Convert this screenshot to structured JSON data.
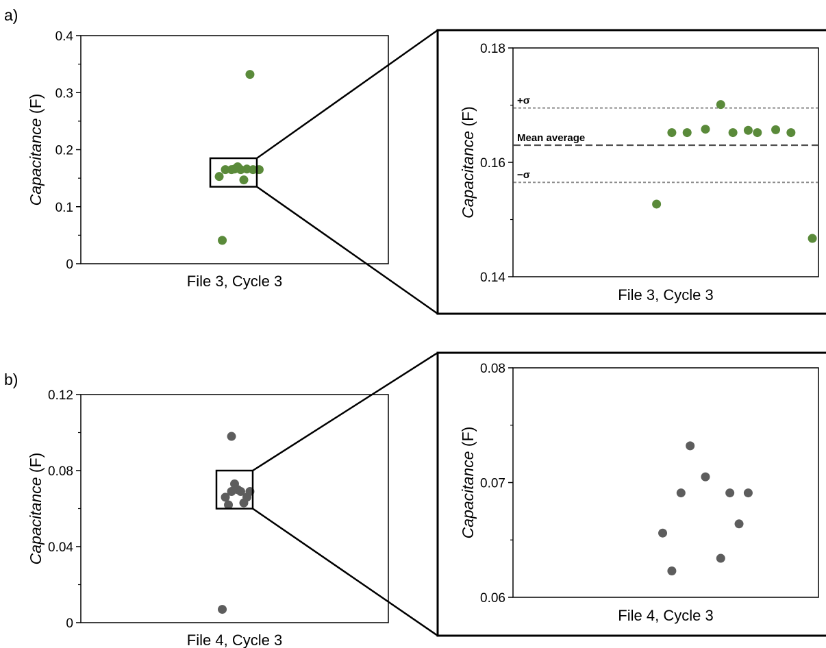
{
  "panels": [
    {
      "label": "a)",
      "main": {
        "xlabel": "File 3, Cycle 3"
      },
      "zoom": {
        "xlabel": "File 3, Cycle 3"
      }
    },
    {
      "label": "b)",
      "main": {
        "xlabel": "File 4, Cycle 3"
      },
      "zoom": {
        "xlabel": "File 4, Cycle 3"
      }
    }
  ],
  "ylabel": {
    "italic": "Capacitance",
    "unit": " (F)"
  },
  "colors": {
    "green": "#5a8a3a",
    "gray": "#5d5d5d",
    "axis": "#000000",
    "refline": "#8c8c8c",
    "meanline": "#505050"
  },
  "chart_data": [
    {
      "type": "scatter",
      "id": "a-main",
      "xlabel": "File 3, Cycle 3",
      "ylabel": "Capacitance (F)",
      "ylim": [
        0,
        0.4
      ],
      "yticks": [
        0,
        0.1,
        0.2,
        0.3,
        0.4
      ],
      "ytick_labels": [
        "0",
        "0.1",
        "0.2",
        "0.3",
        "0.4"
      ],
      "series": [
        {
          "color": "green",
          "x": [
            0.45,
            0.49,
            0.47,
            0.5,
            0.52,
            0.51,
            0.54,
            0.56,
            0.58,
            0.53,
            0.46,
            0.55
          ],
          "y": [
            0.153,
            0.165,
            0.165,
            0.166,
            0.165,
            0.17,
            0.166,
            0.165,
            0.165,
            0.147,
            0.041,
            0.332
          ]
        }
      ],
      "zoom_box": {
        "ylim": [
          0.135,
          0.185
        ]
      }
    },
    {
      "type": "scatter",
      "id": "a-zoom",
      "xlabel": "File 3, Cycle 3",
      "ylabel": "Capacitance (F)",
      "ylim": [
        0.14,
        0.18
      ],
      "yticks": [
        0.14,
        0.16,
        0.18
      ],
      "ytick_labels": [
        "0.14",
        "0.16",
        "0.18"
      ],
      "series": [
        {
          "color": "green",
          "x": [
            0.47,
            0.52,
            0.57,
            0.63,
            0.68,
            0.72,
            0.77,
            0.8,
            0.86,
            0.91,
            0.98
          ],
          "y": [
            0.1527,
            0.1652,
            0.1652,
            0.1658,
            0.1701,
            0.1652,
            0.1656,
            0.1652,
            0.1657,
            0.1652,
            0.1467
          ]
        }
      ],
      "reference_lines": [
        {
          "label": "+σ",
          "y": 0.1695,
          "style": "dotted"
        },
        {
          "label": "Mean average",
          "y": 0.163,
          "style": "dashed"
        },
        {
          "label": "−σ",
          "y": 0.1565,
          "style": "dotted"
        }
      ]
    },
    {
      "type": "scatter",
      "id": "b-main",
      "xlabel": "File 4, Cycle 3",
      "ylabel": "Capacitance (F)",
      "ylim": [
        0,
        0.12
      ],
      "yticks": [
        0,
        0.04,
        0.08,
        0.12
      ],
      "ytick_labels": [
        "0",
        "0.04",
        "0.08",
        "0.12"
      ],
      "series": [
        {
          "color": "gray",
          "x": [
            0.47,
            0.48,
            0.49,
            0.5,
            0.51,
            0.52,
            0.53,
            0.54,
            0.55,
            0.49,
            0.46
          ],
          "y": [
            0.066,
            0.062,
            0.069,
            0.073,
            0.07,
            0.069,
            0.063,
            0.066,
            0.069,
            0.098,
            0.007
          ]
        }
      ],
      "zoom_box": {
        "ylim": [
          0.06,
          0.08
        ]
      }
    },
    {
      "type": "scatter",
      "id": "b-zoom",
      "xlabel": "File 4, Cycle 3",
      "ylabel": "Capacitance (F)",
      "ylim": [
        0.06,
        0.08
      ],
      "yticks": [
        0.06,
        0.07,
        0.08
      ],
      "ytick_labels": [
        "0.06",
        "0.07",
        "0.08"
      ],
      "series": [
        {
          "color": "gray",
          "x": [
            0.49,
            0.52,
            0.55,
            0.58,
            0.63,
            0.68,
            0.71,
            0.74,
            0.77
          ],
          "y": [
            0.0656,
            0.0623,
            0.0691,
            0.0732,
            0.0705,
            0.0634,
            0.0691,
            0.0664,
            0.0691
          ]
        }
      ]
    }
  ]
}
